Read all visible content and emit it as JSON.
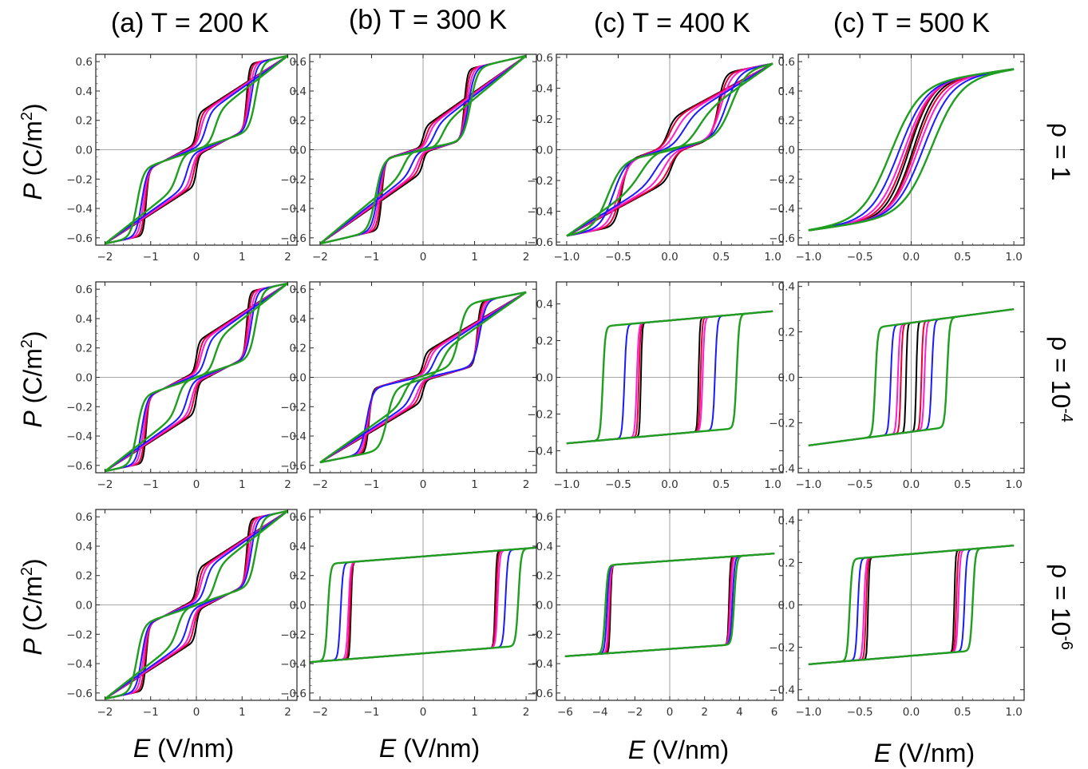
{
  "figure": {
    "column_titles": [
      "(a) T = 200 K",
      "(b) T = 300 K",
      "(c) T = 400 K",
      "(c) T = 500 K"
    ],
    "row_labels": [
      {
        "base": "ρ = 1",
        "sup": ""
      },
      {
        "base": "ρ = 10",
        "sup": "-4"
      },
      {
        "base": "ρ = 10",
        "sup": "-6"
      }
    ],
    "x_axis_title": {
      "italic": "E",
      "rest": " (V/nm)"
    },
    "y_axis_title": {
      "italic": "P",
      "rest": "  (C/m",
      "sup": "2",
      "end": ")"
    },
    "series_colors": {
      "black": "#000000",
      "red": "#e8003a",
      "magenta": "#ff1fd0",
      "blue": "#1a1aff",
      "green": "#1f9e1f"
    }
  },
  "chart_data": [
    {
      "type": "line",
      "panel": "row1-col1",
      "xlim": [
        -2.2,
        2.2
      ],
      "ylim": [
        -0.65,
        0.65
      ],
      "xticks": [
        -2,
        -1,
        0,
        1,
        2
      ],
      "yticks": [
        -0.6,
        -0.4,
        -0.2,
        0.0,
        0.2,
        0.4,
        0.6
      ],
      "loop": {
        "kind": "double",
        "Pmax": 0.64,
        "Emax": 2.0,
        "Ec_inner": [
          0.0,
          0.05,
          0.1,
          0.2,
          0.4
        ],
        "Ec_outer": [
          1.1,
          1.12,
          1.16,
          1.2,
          1.3
        ],
        "Pjump": 0.2
      }
    },
    {
      "type": "line",
      "panel": "row1-col2",
      "xlim": [
        -2.2,
        2.2
      ],
      "ylim": [
        -0.65,
        0.65
      ],
      "xticks": [
        -2,
        -1,
        0,
        1,
        2
      ],
      "yticks": [
        -0.6,
        -0.4,
        -0.2,
        0.0,
        0.2,
        0.4,
        0.6
      ],
      "loop": {
        "kind": "double",
        "Pmax": 0.64,
        "Emax": 2.0,
        "Ec_inner": [
          0.0,
          0.05,
          0.1,
          0.2,
          0.35
        ],
        "Ec_outer": [
          0.8,
          0.82,
          0.85,
          0.88,
          0.92
        ],
        "Pjump": 0.1
      }
    },
    {
      "type": "line",
      "panel": "row1-col3",
      "xlim": [
        -1.1,
        1.1
      ],
      "ylim": [
        -0.62,
        0.62
      ],
      "xticks": [
        -1.0,
        -0.5,
        0.0,
        0.5,
        1.0
      ],
      "yticks": [
        -0.6,
        -0.4,
        -0.2,
        0.0,
        0.2,
        0.4,
        0.6
      ],
      "loop": {
        "kind": "double",
        "Pmax": 0.56,
        "Emax": 1.0,
        "Ec_inner": [
          -0.02,
          0.0,
          0.05,
          0.12,
          0.25
        ],
        "Ec_outer": [
          0.47,
          0.48,
          0.5,
          0.55,
          0.6
        ],
        "Pjump": 0.12
      }
    },
    {
      "type": "line",
      "panel": "row1-col4",
      "xlim": [
        -1.1,
        1.1
      ],
      "ylim": [
        -0.65,
        0.65
      ],
      "xticks": [
        -1.0,
        -0.5,
        0.0,
        0.5,
        1.0
      ],
      "yticks": [
        -0.6,
        -0.4,
        -0.2,
        0.0,
        0.2,
        0.4,
        0.6
      ],
      "loop": {
        "kind": "slim",
        "Pmax": 0.55,
        "Emax": 1.0,
        "Ec": [
          0.02,
          0.04,
          0.07,
          0.12,
          0.2
        ]
      }
    },
    {
      "type": "line",
      "panel": "row2-col1",
      "xlim": [
        -2.2,
        2.2
      ],
      "ylim": [
        -0.65,
        0.65
      ],
      "xticks": [
        -2,
        -1,
        0,
        1,
        2
      ],
      "yticks": [
        -0.6,
        -0.4,
        -0.2,
        0.0,
        0.2,
        0.4,
        0.6
      ],
      "loop": {
        "kind": "double",
        "Pmax": 0.64,
        "Emax": 2.0,
        "Ec_inner": [
          0.0,
          0.05,
          0.1,
          0.2,
          0.4
        ],
        "Ec_outer": [
          1.1,
          1.12,
          1.16,
          1.2,
          1.3
        ],
        "Pjump": 0.2
      }
    },
    {
      "type": "line",
      "panel": "row2-col2",
      "xlim": [
        -2.2,
        2.2
      ],
      "ylim": [
        -0.65,
        0.65
      ],
      "xticks": [
        -2,
        -1,
        0,
        1,
        2
      ],
      "yticks": [
        -0.6,
        -0.4,
        -0.2,
        0.0,
        0.2,
        0.4,
        0.6
      ],
      "loop": {
        "kind": "double",
        "Pmax": 0.58,
        "Emax": 2.0,
        "Ec_inner": [
          0.0,
          0.05,
          0.1,
          0.2,
          0.35
        ],
        "Ec_outer": [
          1.05,
          1.06,
          1.08,
          1.1,
          0.7
        ],
        "Pjump": 0.12
      }
    },
    {
      "type": "line",
      "panel": "row2-col3",
      "xlim": [
        -1.1,
        1.1
      ],
      "ylim": [
        -0.52,
        0.52
      ],
      "xticks": [
        -1.0,
        -0.5,
        0.0,
        0.5,
        1.0
      ],
      "yticks": [
        -0.4,
        -0.2,
        0.0,
        0.2,
        0.4
      ],
      "loop": {
        "kind": "square",
        "Psat": 0.36,
        "Prem": 0.31,
        "Emax": 1.0,
        "Ec": [
          0.28,
          0.3,
          0.32,
          0.44,
          0.65
        ]
      }
    },
    {
      "type": "line",
      "panel": "row2-col4",
      "xlim": [
        -1.1,
        1.1
      ],
      "ylim": [
        -0.42,
        0.42
      ],
      "xticks": [
        -1.0,
        -0.5,
        0.0,
        0.5,
        1.0
      ],
      "yticks": [
        -0.4,
        -0.2,
        0.0,
        0.2,
        0.4
      ],
      "loop": {
        "kind": "square",
        "Psat": 0.3,
        "Prem": 0.24,
        "Emax": 1.0,
        "Ec": [
          0.05,
          0.1,
          0.13,
          0.2,
          0.35
        ]
      }
    },
    {
      "type": "line",
      "panel": "row3-col1",
      "xlim": [
        -2.2,
        2.2
      ],
      "ylim": [
        -0.65,
        0.65
      ],
      "xticks": [
        -2,
        -1,
        0,
        1,
        2
      ],
      "yticks": [
        -0.6,
        -0.4,
        -0.2,
        0.0,
        0.2,
        0.4,
        0.6
      ],
      "loop": {
        "kind": "double",
        "Pmax": 0.64,
        "Emax": 2.0,
        "Ec_inner": [
          0.0,
          0.05,
          0.1,
          0.2,
          0.4
        ],
        "Ec_outer": [
          1.1,
          1.12,
          1.16,
          1.2,
          1.3
        ],
        "Pjump": 0.2
      }
    },
    {
      "type": "line",
      "panel": "row3-col2",
      "xlim": [
        -2.2,
        2.2
      ],
      "ylim": [
        -0.65,
        0.65
      ],
      "xticks": [
        -2,
        -1,
        0,
        1,
        2
      ],
      "yticks": [
        -0.6,
        -0.4,
        -0.2,
        0.0,
        0.2,
        0.4,
        0.6
      ],
      "loop": {
        "kind": "square",
        "Psat": 0.39,
        "Prem": 0.33,
        "Emax": 2.2,
        "Ec": [
          1.4,
          1.42,
          1.45,
          1.6,
          1.85
        ]
      }
    },
    {
      "type": "line",
      "panel": "row3-col3",
      "xlim": [
        -6.5,
        6.5
      ],
      "ylim": [
        -0.65,
        0.65
      ],
      "xticks": [
        -6,
        -4,
        -2,
        0,
        2,
        4,
        6
      ],
      "yticks": [
        -0.6,
        -0.4,
        -0.2,
        0.0,
        0.2,
        0.4,
        0.6
      ],
      "loop": {
        "kind": "square",
        "Psat": 0.35,
        "Prem": 0.3,
        "Emax": 6.0,
        "Ec": [
          3.4,
          3.45,
          3.5,
          3.6,
          3.7
        ]
      }
    },
    {
      "type": "line",
      "panel": "row3-col4",
      "xlim": [
        -1.1,
        1.1
      ],
      "ylim": [
        -0.45,
        0.45
      ],
      "xticks": [
        -1.0,
        -0.5,
        0.0,
        0.5,
        1.0
      ],
      "yticks": [
        -0.4,
        -0.2,
        0.0,
        0.2,
        0.4
      ],
      "loop": {
        "kind": "square",
        "Psat": 0.28,
        "Prem": 0.24,
        "Emax": 1.0,
        "Ec": [
          0.42,
          0.44,
          0.46,
          0.52,
          0.6
        ]
      }
    }
  ]
}
